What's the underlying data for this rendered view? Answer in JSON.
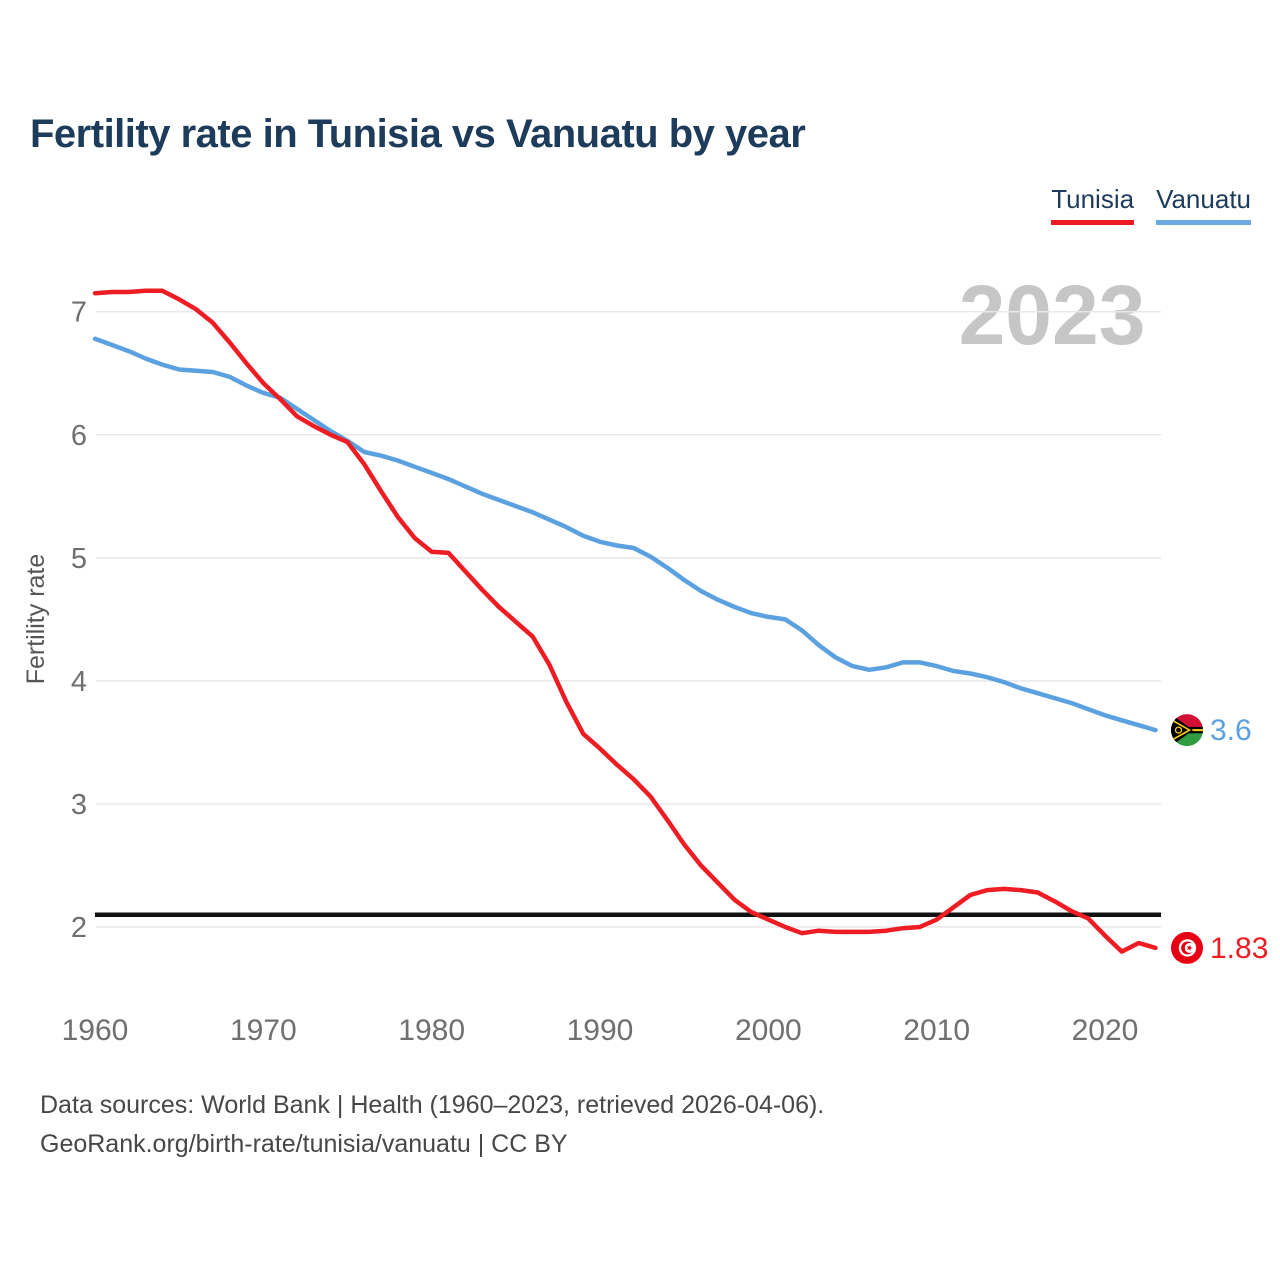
{
  "header": {
    "title": "Fertility rate in Tunisia vs Vanuatu by year"
  },
  "legend": [
    {
      "label": "Tunisia",
      "color": "#ec1b23"
    },
    {
      "label": "Vanuatu",
      "color": "#6babe1"
    }
  ],
  "watermark": {
    "text": "2023",
    "color": "#c6c6c6"
  },
  "footer": {
    "line1": "Data sources: World Bank | Health (1960–2023, retrieved 2026-04-06).",
    "line2": "GeoRank.org/birth-rate/tunisia/vanuatu | CC BY"
  },
  "chart_data": {
    "type": "line",
    "title": "Fertility rate in Tunisia vs Vanuatu by year",
    "xlabel": "",
    "ylabel": "Fertility rate",
    "grid": true,
    "legend_position": "top-right",
    "xlim": [
      1960,
      2024
    ],
    "ylim": [
      1.5,
      7.3
    ],
    "x_ticks": [
      1960,
      1970,
      1980,
      1990,
      2000,
      2010,
      2020
    ],
    "y_ticks": [
      2,
      3,
      4,
      5,
      6,
      7
    ],
    "reference_line": {
      "value": 2.1,
      "color": "#111111"
    },
    "x": [
      1960,
      1961,
      1962,
      1963,
      1964,
      1965,
      1966,
      1967,
      1968,
      1969,
      1970,
      1971,
      1972,
      1973,
      1974,
      1975,
      1976,
      1977,
      1978,
      1979,
      1980,
      1981,
      1982,
      1983,
      1984,
      1985,
      1986,
      1987,
      1988,
      1989,
      1990,
      1991,
      1992,
      1993,
      1994,
      1995,
      1996,
      1997,
      1998,
      1999,
      2000,
      2001,
      2002,
      2003,
      2004,
      2005,
      2006,
      2007,
      2008,
      2009,
      2010,
      2011,
      2012,
      2013,
      2014,
      2015,
      2016,
      2017,
      2018,
      2019,
      2020,
      2021,
      2022,
      2023
    ],
    "series": [
      {
        "name": "Tunisia",
        "color": "#ee1c23",
        "end_label": "1.83",
        "end_value": 1.83,
        "values": [
          7.15,
          7.16,
          7.16,
          7.17,
          7.17,
          7.1,
          7.02,
          6.91,
          6.75,
          6.58,
          6.42,
          6.29,
          6.15,
          6.07,
          6.0,
          5.94,
          5.76,
          5.54,
          5.33,
          5.16,
          5.05,
          5.04,
          4.89,
          4.74,
          4.6,
          4.48,
          4.36,
          4.13,
          3.83,
          3.57,
          3.45,
          3.32,
          3.2,
          3.06,
          2.87,
          2.67,
          2.5,
          2.36,
          2.22,
          2.12,
          2.06,
          2.0,
          1.95,
          1.97,
          1.96,
          1.96,
          1.96,
          1.97,
          1.99,
          2.0,
          2.06,
          2.16,
          2.26,
          2.3,
          2.31,
          2.3,
          2.28,
          2.21,
          2.13,
          2.07,
          1.93,
          1.8,
          1.87,
          1.83
        ]
      },
      {
        "name": "Vanuatu",
        "color": "#5ba1e0",
        "end_label": "3.6",
        "end_value": 3.6,
        "values": [
          6.78,
          6.73,
          6.68,
          6.62,
          6.57,
          6.53,
          6.52,
          6.51,
          6.47,
          6.4,
          6.34,
          6.3,
          6.21,
          6.12,
          6.03,
          5.95,
          5.86,
          5.83,
          5.79,
          5.74,
          5.69,
          5.64,
          5.58,
          5.52,
          5.47,
          5.42,
          5.37,
          5.31,
          5.25,
          5.18,
          5.13,
          5.1,
          5.08,
          5.01,
          4.92,
          4.82,
          4.73,
          4.66,
          4.6,
          4.55,
          4.52,
          4.5,
          4.41,
          4.29,
          4.19,
          4.12,
          4.09,
          4.11,
          4.15,
          4.15,
          4.12,
          4.08,
          4.06,
          4.03,
          3.99,
          3.94,
          3.9,
          3.86,
          3.82,
          3.77,
          3.72,
          3.68,
          3.64,
          3.6
        ]
      }
    ]
  }
}
